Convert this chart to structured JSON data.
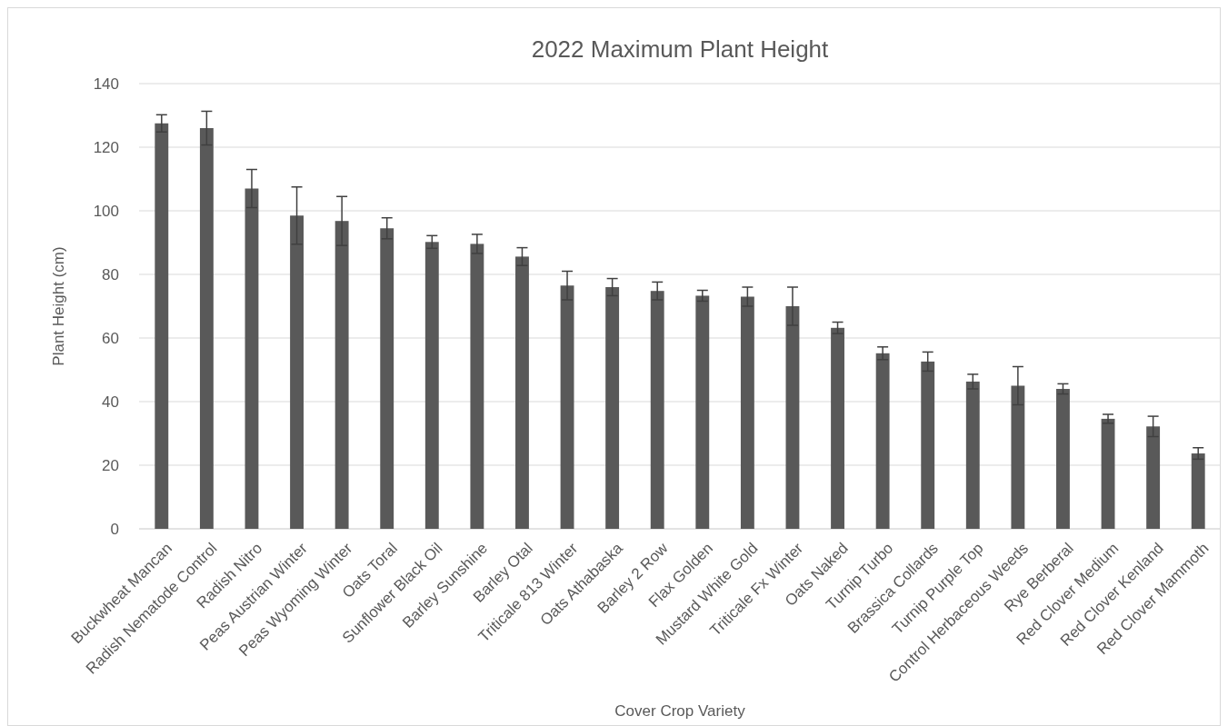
{
  "chart_data": {
    "type": "bar",
    "title": "2022 Maximum Plant Height",
    "xlabel": "Cover Crop Variety",
    "ylabel": "Plant Height (cm)",
    "categories": [
      "Buckwheat Mancan",
      "Radish Nematode Control",
      "Radish Nitro",
      "Peas Austrian Winter",
      "Peas Wyoming Winter",
      "Oats Toral",
      "Sunflower Black Oil",
      "Barley Sunshine",
      "Barley Otal",
      "Triticale 813 Winter",
      "Oats Athabaska",
      "Barley 2 Row",
      "Flax Golden",
      "Mustard White Gold",
      "Triticale Fx Winter",
      "Oats Naked",
      "Turnip Turbo",
      "Brassica Collards",
      "Turnip Purple Top",
      "Control Herbaceous Weeds",
      "Rye Berberal",
      "Red Clover Medium",
      "Red Clover Kenland",
      "Red Clover Mammoth"
    ],
    "values": [
      127.5,
      126,
      107,
      98.5,
      96.8,
      94.5,
      90.2,
      89.6,
      85.6,
      76.5,
      76,
      74.8,
      73.3,
      73,
      70,
      63.2,
      55.2,
      52.6,
      46.3,
      45,
      44,
      34.6,
      32.2,
      23.7
    ],
    "errors": [
      2.7,
      5.3,
      6,
      9,
      7.7,
      3.3,
      2,
      3,
      2.8,
      4.5,
      2.7,
      2.8,
      1.7,
      3,
      6,
      1.8,
      2,
      3,
      2.3,
      6,
      1.6,
      1.4,
      3.2,
      1.8
    ],
    "color": "#595959",
    "ylim": [
      0,
      140
    ],
    "yticks": [
      0,
      20,
      40,
      60,
      80,
      100,
      120,
      140
    ],
    "grid": "y"
  }
}
